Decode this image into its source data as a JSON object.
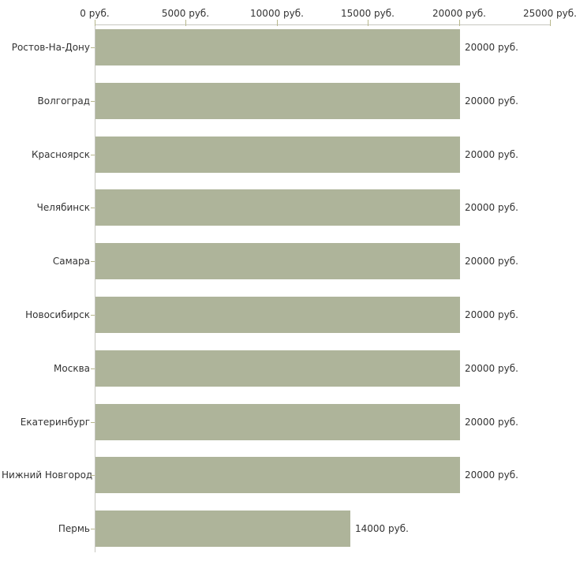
{
  "chart_data": {
    "type": "bar",
    "orientation": "horizontal",
    "title": "",
    "xlabel": "",
    "ylabel": "",
    "categories": [
      "Ростов-На-Дону",
      "Волгоград",
      "Красноярск",
      "Челябинск",
      "Самара",
      "Новосибирск",
      "Москва",
      "Екатеринбург",
      "Нижний Новгород",
      "Пермь"
    ],
    "values": [
      20000,
      20000,
      20000,
      20000,
      20000,
      20000,
      20000,
      20000,
      20000,
      14000
    ],
    "value_labels": [
      "20000 руб.",
      "20000 руб.",
      "20000 руб.",
      "20000 руб.",
      "20000 руб.",
      "20000 руб.",
      "20000 руб.",
      "20000 руб.",
      "20000 руб.",
      "14000 руб."
    ],
    "xlim": [
      0,
      25000
    ],
    "x_ticks": [
      0,
      5000,
      10000,
      15000,
      20000,
      25000
    ],
    "x_tick_labels": [
      "0 руб.",
      "5000 руб.",
      "10000 руб.",
      "15000 руб.",
      "20000 руб.",
      "25000 руб."
    ],
    "grid": false,
    "legend": null,
    "colors": {
      "bar": "#aeb49a",
      "axis": "#c6c6c0",
      "tick": "#b7b78c",
      "text": "#333333",
      "background": "#ffffff"
    }
  }
}
